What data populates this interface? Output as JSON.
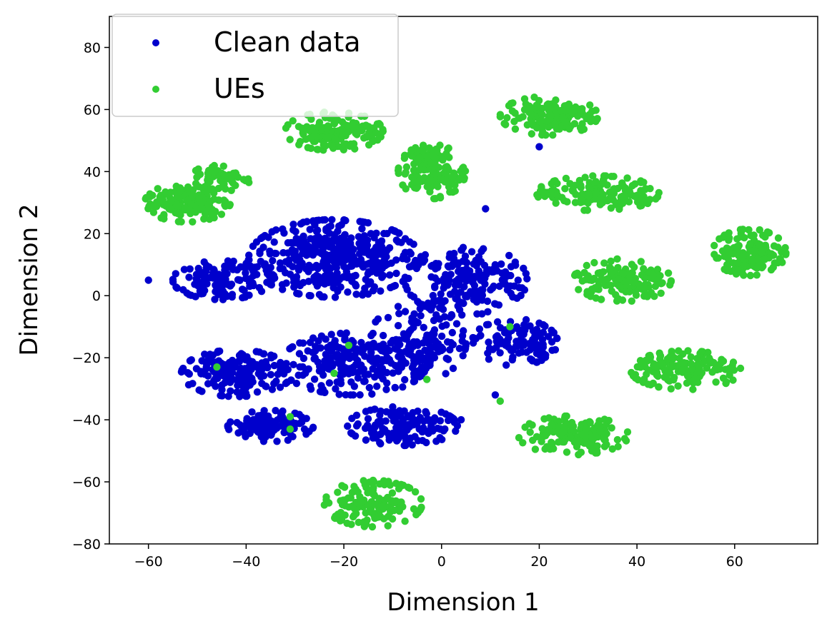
{
  "chart_data": {
    "type": "scatter",
    "title": "",
    "xlabel": "Dimension 1",
    "ylabel": "Dimension 2",
    "xlim": [
      -68,
      77
    ],
    "ylim": [
      -80,
      90
    ],
    "xticks": [
      -60,
      -40,
      -20,
      0,
      20,
      40,
      60
    ],
    "yticks": [
      -80,
      -60,
      -40,
      -20,
      0,
      20,
      40,
      60,
      80
    ],
    "xtick_labels": [
      "−60",
      "−40",
      "−20",
      "0",
      "20",
      "40",
      "60"
    ],
    "ytick_labels": [
      "−80",
      "−60",
      "−40",
      "−20",
      "0",
      "20",
      "40",
      "60",
      "80"
    ],
    "grid": false,
    "legend_position": "top-left",
    "series": [
      {
        "name": "Clean data",
        "color": "#0000CC",
        "clusters": [
          {
            "center": [
              -22,
              12
            ],
            "spread": [
              14,
              10
            ],
            "n": 420
          },
          {
            "center": [
              -45,
              5
            ],
            "spread": [
              8,
              5
            ],
            "n": 120
          },
          {
            "center": [
              5,
              5
            ],
            "spread": [
              10,
              9
            ],
            "n": 200
          },
          {
            "center": [
              15,
              -15
            ],
            "spread": [
              7,
              6
            ],
            "n": 110
          },
          {
            "center": [
              -42,
              -25
            ],
            "spread": [
              9,
              6
            ],
            "n": 170
          },
          {
            "center": [
              -18,
              -22
            ],
            "spread": [
              12,
              8
            ],
            "n": 220
          },
          {
            "center": [
              -35,
              -42
            ],
            "spread": [
              7,
              4
            ],
            "n": 120
          },
          {
            "center": [
              -8,
              -42
            ],
            "spread": [
              9,
              5
            ],
            "n": 140
          },
          {
            "center": [
              -5,
              -15
            ],
            "spread": [
              8,
              10
            ],
            "n": 140
          }
        ],
        "points": [
          [
            -60,
            5
          ],
          [
            9,
            28
          ],
          [
            4,
            -40
          ],
          [
            11,
            -32
          ],
          [
            20,
            48
          ]
        ]
      },
      {
        "name": "UEs",
        "color": "#32CD32",
        "clusters": [
          {
            "center": [
              -52,
              30
            ],
            "spread": [
              7,
              5
            ],
            "n": 150
          },
          {
            "center": [
              -45,
              38
            ],
            "spread": [
              5,
              3.5
            ],
            "n": 60
          },
          {
            "center": [
              -22,
              53
            ],
            "spread": [
              8,
              5
            ],
            "n": 140
          },
          {
            "center": [
              -2,
              40
            ],
            "spread": [
              5.5,
              7
            ],
            "n": 140
          },
          {
            "center": [
              22,
              58
            ],
            "spread": [
              8,
              5
            ],
            "n": 140
          },
          {
            "center": [
              32,
              33
            ],
            "spread": [
              10,
              4.5
            ],
            "n": 150
          },
          {
            "center": [
              63,
              14
            ],
            "spread": [
              6,
              6
            ],
            "n": 140
          },
          {
            "center": [
              37,
              5
            ],
            "spread": [
              8,
              5.5
            ],
            "n": 140
          },
          {
            "center": [
              50,
              -24
            ],
            "spread": [
              9,
              5
            ],
            "n": 150
          },
          {
            "center": [
              27,
              -45
            ],
            "spread": [
              9,
              5
            ],
            "n": 150
          },
          {
            "center": [
              -14,
              -67
            ],
            "spread": [
              8,
              6
            ],
            "n": 140
          }
        ],
        "points": [
          [
            -46,
            -23
          ],
          [
            -31,
            -39
          ],
          [
            -31,
            -43
          ],
          [
            -22,
            -25
          ],
          [
            -19,
            -16
          ],
          [
            -3,
            -27
          ],
          [
            14,
            -10
          ],
          [
            12,
            -34
          ]
        ]
      }
    ]
  }
}
